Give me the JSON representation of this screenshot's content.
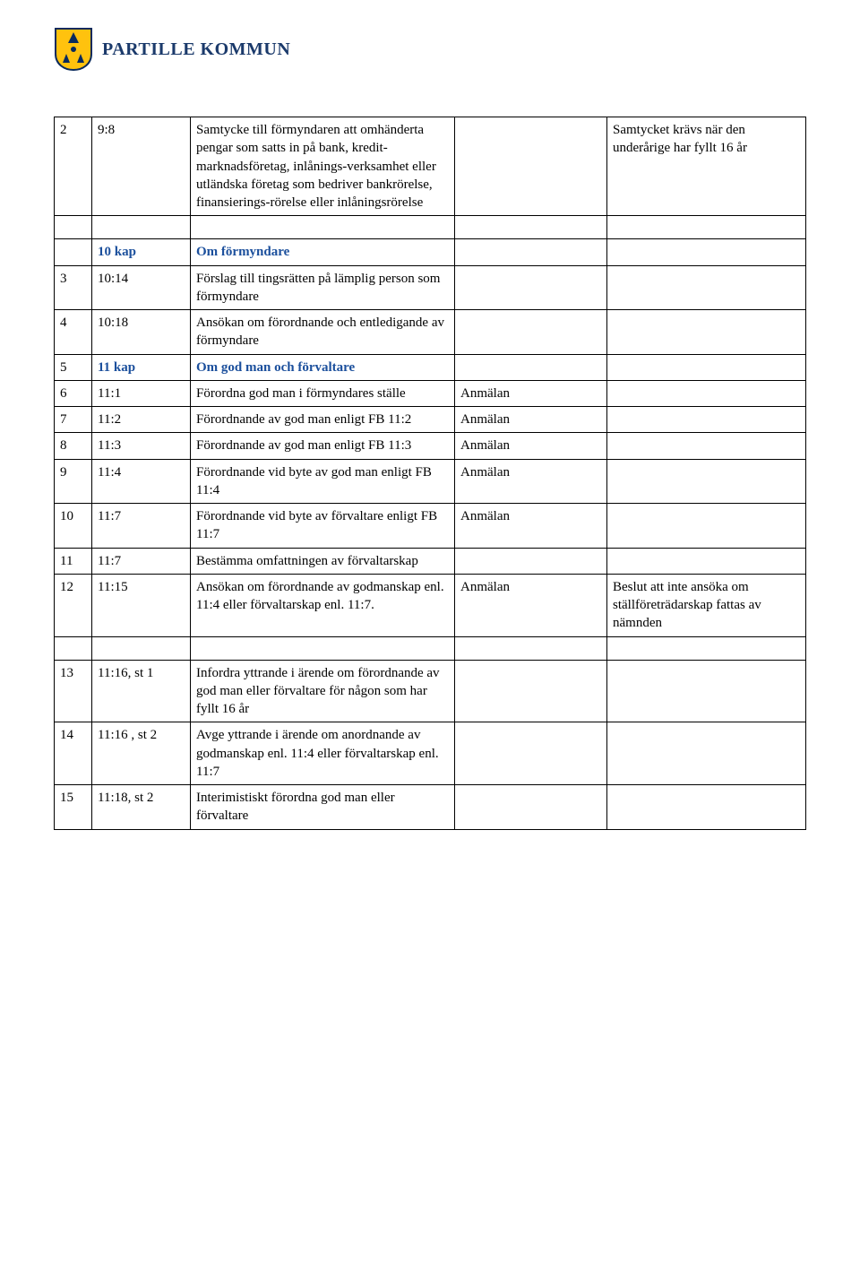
{
  "brand": "PARTILLE KOMMUN",
  "colors": {
    "brand_text": "#1b3a6b",
    "section_text": "#1b4f9c",
    "border": "#000000",
    "bg": "#ffffff"
  },
  "crest": {
    "shield_fill": "#ffc20e",
    "shield_stroke": "#0a2a5c",
    "accent": "#0a2a5c"
  },
  "rows": [
    {
      "n": "2",
      "ref": "9:8",
      "desc": "Samtycke till förmyndaren att omhänderta pengar som satts in på bank, kredit-marknadsföretag, inlånings-verksamhet eller utländska företag som bedriver bankrörelse, finansierings-rörelse eller inlåningsrörelse",
      "c4": "",
      "c5": "Samtycket krävs när den underårige har fyllt 16 år"
    },
    {
      "spacer": true
    },
    {
      "n": "",
      "ref": "10 kap",
      "ref_class": "section-head",
      "desc": "Om förmyndare",
      "desc_class": "section-head",
      "c4": "",
      "c5": ""
    },
    {
      "n": "3",
      "ref": "10:14",
      "desc": "Förslag till tingsrätten på lämplig person som förmyndare",
      "c4": "",
      "c5": ""
    },
    {
      "n": "4",
      "ref": "10:18",
      "desc": "Ansökan om förordnande och entledigande av förmyndare",
      "c4": "",
      "c5": ""
    },
    {
      "n": "5",
      "ref": "11 kap",
      "ref_class": "section-head",
      "desc": "Om god man och förvaltare",
      "desc_class": "section-head",
      "c4": "",
      "c5": ""
    },
    {
      "n": "6",
      "ref": "11:1",
      "desc": "Förordna god man i förmyndares ställe",
      "c4": "Anmälan",
      "c5": ""
    },
    {
      "n": "7",
      "ref": "11:2",
      "desc": "Förordnande av god man enligt FB 11:2",
      "c4": "Anmälan",
      "c5": ""
    },
    {
      "n": "8",
      "ref": "11:3",
      "desc": "Förordnande av god man enligt FB 11:3",
      "c4": "Anmälan",
      "c5": ""
    },
    {
      "n": "9",
      "ref": "11:4",
      "desc": "Förordnande vid byte av god man enligt FB 11:4",
      "c4": "Anmälan",
      "c5": ""
    },
    {
      "n": "10",
      "ref": "11:7",
      "desc": "Förordnande vid byte av förvaltare enligt FB 11:7",
      "c4": "Anmälan",
      "c5": ""
    },
    {
      "n": "11",
      "ref": "11:7",
      "desc": "Bestämma omfattningen av förvaltarskap",
      "c4": "",
      "c5": ""
    },
    {
      "n": "12",
      "ref": "11:15",
      "desc": "Ansökan om förordnande av godmanskap enl. 11:4 eller förvaltarskap enl. 11:7.",
      "c4": "Anmälan",
      "c5": "Beslut att inte ansöka om ställföreträdarskap fattas av nämnden"
    },
    {
      "spacer": true
    },
    {
      "n": "13",
      "ref": "11:16, st 1",
      "desc": "Infordra yttrande i ärende om förordnande av god man eller förvaltare för någon som har fyllt 16 år",
      "c4": "",
      "c5": ""
    },
    {
      "n": "14",
      "ref": "11:16 , st 2",
      "desc": "Avge yttrande i ärende om anordnande av godmanskap enl. 11:4 eller förvaltarskap enl. 11:7",
      "c4": "",
      "c5": ""
    },
    {
      "n": "15",
      "ref": "11:18, st 2",
      "desc": "Interimistiskt förordna god man eller förvaltare",
      "c4": "",
      "c5": ""
    }
  ]
}
